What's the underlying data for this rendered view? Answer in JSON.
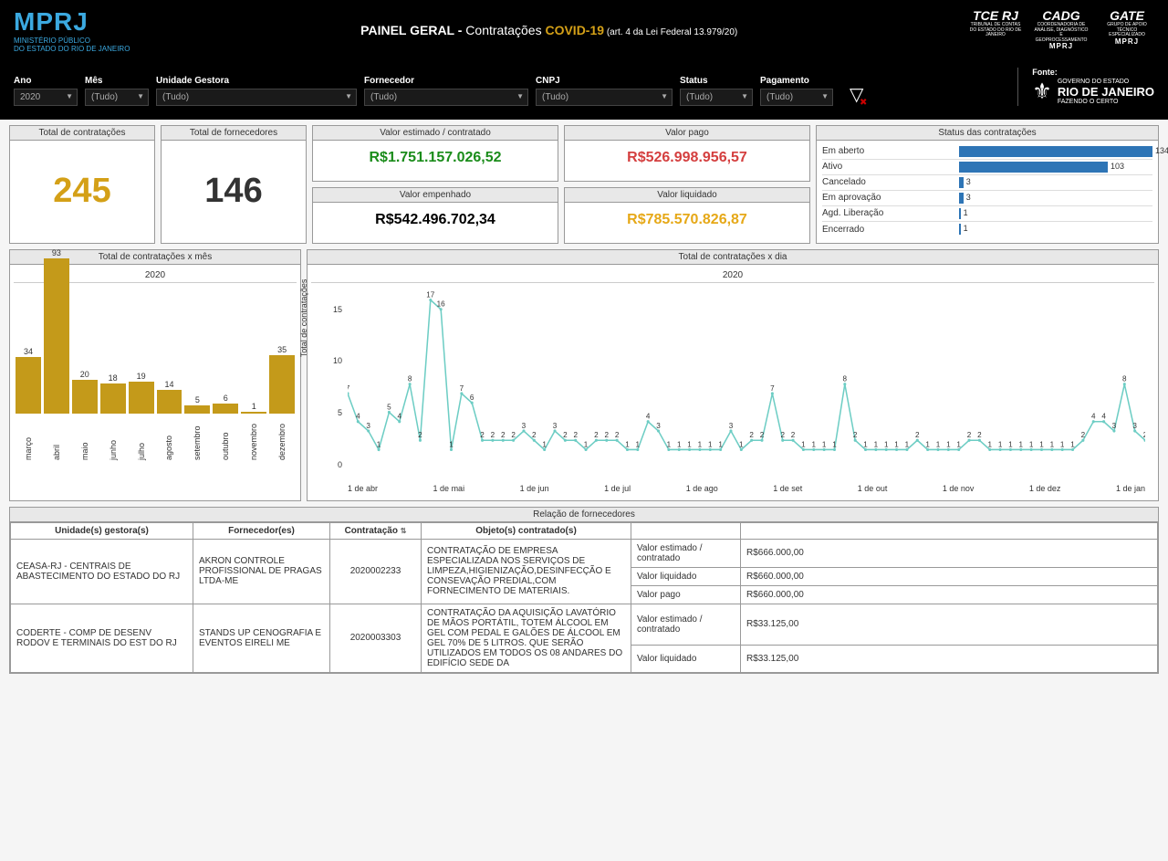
{
  "header": {
    "logo_text": "MPRJ",
    "logo_sub1": "MINISTÉRIO PÚBLICO",
    "logo_sub2": "DO ESTADO DO RIO DE JANEIRO",
    "title_bold": "PAINEL GERAL - ",
    "title_rest": "Contratações ",
    "title_covid": "COVID-19",
    "title_small": " (art. 4 da Lei Federal 13.979/20)",
    "logos": [
      {
        "big": "TCE RJ",
        "sub": "TRIBUNAL DE CONTAS DO ESTADO DO RIO DE JANEIRO"
      },
      {
        "big": "CADG",
        "sub": "COORDENADORIA DE ANÁLISE, DIAGNÓSTICO E GEOPROCESSAMENTO",
        "mprj": "MPRJ"
      },
      {
        "big": "GATE",
        "sub": "GRUPO DE APOIO TÉCNICO ESPECIALIZADO",
        "mprj": "MPRJ"
      }
    ]
  },
  "filters": {
    "ano": {
      "label": "Ano",
      "value": "2020"
    },
    "mes": {
      "label": "Mês",
      "value": "(Tudo)"
    },
    "unidade": {
      "label": "Unidade Gestora",
      "value": "(Tudo)"
    },
    "fornecedor": {
      "label": "Fornecedor",
      "value": "(Tudo)"
    },
    "cnpj": {
      "label": "CNPJ",
      "value": "(Tudo)"
    },
    "status": {
      "label": "Status",
      "value": "(Tudo)"
    },
    "pagamento": {
      "label": "Pagamento",
      "value": "(Tudo)"
    },
    "fonte_label": "Fonte:",
    "fonte_gov": "GOVERNO DO ESTADO",
    "fonte_rj": "RIO DE JANEIRO",
    "fonte_sub": "FAZENDO O CERTO"
  },
  "kpi": {
    "contratacoes": {
      "title": "Total de contratações",
      "value": "245"
    },
    "fornecedores": {
      "title": "Total de fornecedores",
      "value": "146"
    },
    "estimado": {
      "title": "Valor estimado / contratado",
      "value": "R$1.751.157.026,52",
      "color": "#1a8c1a"
    },
    "empenhado": {
      "title": "Valor empenhado",
      "value": "R$542.496.702,34",
      "color": "#000"
    },
    "pago": {
      "title": "Valor pago",
      "value": "R$526.998.956,57",
      "color": "#d43f3f"
    },
    "liquidado": {
      "title": "Valor liquidado",
      "value": "R$785.570.826,87",
      "color": "#e6a817"
    }
  },
  "status_chart": {
    "title": "Status das contratações",
    "max": 134,
    "bar_color": "#2e75b6",
    "rows": [
      {
        "label": "Em aberto",
        "value": 134
      },
      {
        "label": "Ativo",
        "value": 103
      },
      {
        "label": "Cancelado",
        "value": 3
      },
      {
        "label": "Em aprovação",
        "value": 3
      },
      {
        "label": "Agd. Liberação",
        "value": 1
      },
      {
        "label": "Encerrado",
        "value": 1
      }
    ]
  },
  "month_chart": {
    "title": "Total de contratações x mês",
    "year": "2020",
    "max": 93,
    "bar_color": "#c49a1a",
    "bars": [
      {
        "label": "março",
        "value": 34
      },
      {
        "label": "abril",
        "value": 93
      },
      {
        "label": "maio",
        "value": 20
      },
      {
        "label": "junho",
        "value": 18
      },
      {
        "label": "julho",
        "value": 19
      },
      {
        "label": "agosto",
        "value": 14
      },
      {
        "label": "setembro",
        "value": 5
      },
      {
        "label": "outubro",
        "value": 6
      },
      {
        "label": "novembro",
        "value": 1
      },
      {
        "label": "dezembro",
        "value": 35
      }
    ]
  },
  "day_chart": {
    "title": "Total de contratações x dia",
    "year": "2020",
    "y_label": "Total de contratações",
    "y_ticks": [
      "15",
      "10",
      "5",
      "0"
    ],
    "y_max": 17,
    "line_color": "#6dcdc4",
    "x_ticks": [
      "1 de abr",
      "1 de mai",
      "1 de jun",
      "1 de jul",
      "1 de ago",
      "1 de set",
      "1 de out",
      "1 de nov",
      "1 de dez",
      "1 de jan"
    ],
    "points": [
      7,
      4,
      3,
      1,
      5,
      4,
      8,
      2,
      17,
      16,
      1,
      7,
      6,
      2,
      2,
      2,
      2,
      3,
      2,
      1,
      3,
      2,
      2,
      1,
      2,
      2,
      2,
      1,
      1,
      4,
      3,
      1,
      1,
      1,
      1,
      1,
      1,
      3,
      1,
      2,
      2,
      7,
      2,
      2,
      1,
      1,
      1,
      1,
      8,
      2,
      1,
      1,
      1,
      1,
      1,
      2,
      1,
      1,
      1,
      1,
      2,
      2,
      1,
      1,
      1,
      1,
      1,
      1,
      1,
      1,
      1,
      2,
      4,
      4,
      3,
      8,
      3,
      2
    ]
  },
  "table": {
    "title": "Relação de fornecedores",
    "columns": [
      "Unidade(s) gestora(s)",
      "Fornecedor(es)",
      "Contratação",
      "Objeto(s) contratado(s)"
    ],
    "sort_col": 2,
    "rows": [
      {
        "unidade": "CEASA-RJ - CENTRAIS DE ABASTECIMENTO DO ESTADO DO RJ",
        "fornecedor": "AKRON CONTROLE PROFISSIONAL DE PRAGAS LTDA-ME",
        "contratacao": "2020002233",
        "objeto": "CONTRATAÇÃO DE EMPRESA ESPECIALIZADA NOS SERVIÇOS DE LIMPEZA,HIGIENIZAÇÃO,DESINFECÇÃO E CONSEVAÇÃO PREDIAL,COM FORNECIMENTO DE MATERIAIS.",
        "values": [
          {
            "label": "Valor estimado / contratado",
            "value": "R$666.000,00"
          },
          {
            "label": "Valor liquidado",
            "value": "R$660.000,00"
          },
          {
            "label": "Valor pago",
            "value": "R$660.000,00"
          }
        ]
      },
      {
        "unidade": "CODERTE - COMP DE DESENV RODOV E TERMINAIS DO EST DO RJ",
        "fornecedor": "STANDS UP CENOGRAFIA E EVENTOS EIRELI ME",
        "contratacao": "2020003303",
        "objeto": "CONTRATAÇÃO DA AQUISIÇÃO LAVATÓRIO DE MÃOS PORTÁTIL, TOTEM ÁLCOOL EM GEL COM PEDAL E GALÕES DE ÁLCOOL EM GEL 70% DE 5 LITROS. QUE SERÃO UTILIZADOS EM TODOS OS 08 ANDARES DO EDIFÍCIO SEDE DA",
        "values": [
          {
            "label": "Valor estimado / contratado",
            "value": "R$33.125,00"
          },
          {
            "label": "Valor liquidado",
            "value": "R$33.125,00"
          }
        ]
      }
    ]
  }
}
